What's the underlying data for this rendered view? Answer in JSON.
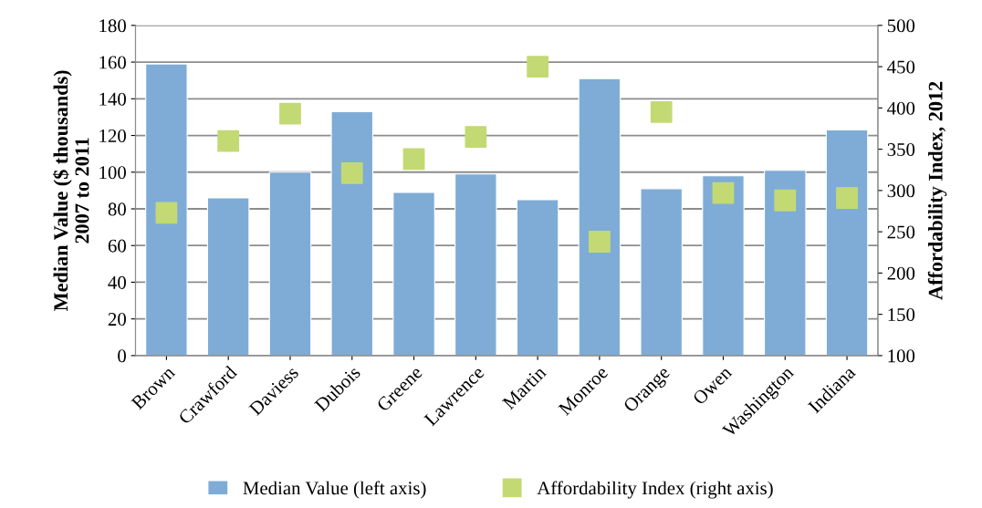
{
  "chart_data": {
    "type": "bar",
    "categories": [
      "Brown",
      "Crawford",
      "Daviess",
      "Dubois",
      "Greene",
      "Lawrence",
      "Martin",
      "Monroe",
      "Orange",
      "Owen",
      "Washington",
      "Indiana"
    ],
    "series": [
      {
        "name": "Median Value (left axis)",
        "color": "#7facd6",
        "values": [
          159,
          86,
          100,
          133,
          89,
          99,
          85,
          151,
          91,
          98,
          101,
          123
        ]
      },
      {
        "name": "Affordability Index (right axis)",
        "type": "scatter",
        "axis": "y2",
        "color": "#c3d974",
        "values": [
          273,
          360,
          393,
          321,
          338,
          365,
          450,
          238,
          395,
          297,
          288,
          291
        ]
      }
    ],
    "ylabel": "Median Value ($ thousands)\n2007 to 2011",
    "y2label": "Affordability Index, 2012",
    "ylim": [
      0,
      180
    ],
    "yticks": [
      0,
      20,
      40,
      60,
      80,
      100,
      120,
      140,
      160,
      180
    ],
    "y2lim": [
      100,
      500
    ],
    "y2ticks": [
      100,
      150,
      200,
      250,
      300,
      350,
      400,
      450,
      500
    ],
    "grid": "y",
    "legend": "bottom",
    "marker": "square"
  }
}
